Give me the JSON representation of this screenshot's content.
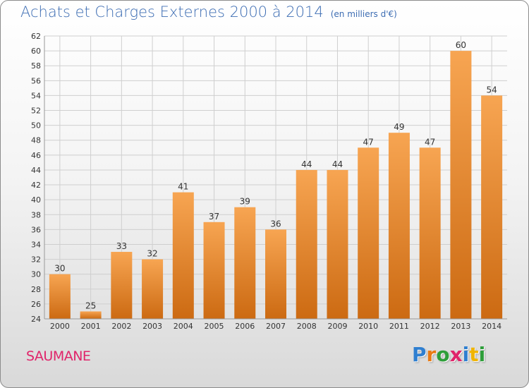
{
  "header": {
    "title": "Achats et Charges Externes 2000 à 2014",
    "subtitle": "(en milliers d'€)"
  },
  "footer": {
    "commune": "SAUMANE",
    "brand": "Proxiti",
    "brand_letters": [
      {
        "ch": "P",
        "color": "#2f7fd0"
      },
      {
        "ch": "r",
        "color": "#e87a14"
      },
      {
        "ch": "o",
        "color": "#2e9e3a"
      },
      {
        "ch": "x",
        "color": "#e0246a"
      },
      {
        "ch": "i",
        "color": "#2f7fd0"
      },
      {
        "ch": "t",
        "color": "#f0b400"
      },
      {
        "ch": "i",
        "color": "#2e9e3a"
      }
    ]
  },
  "colors": {
    "bar_light": "#f7a552",
    "bar_dark": "#cc6a12",
    "title": "#3d6db3",
    "commune": "#e0246a",
    "grid": "#cfcfcf",
    "axis_text": "#333333"
  },
  "chart_data": {
    "type": "bar",
    "title": "Achats et Charges Externes 2000 à 2014",
    "subtitle": "(en milliers d'€)",
    "categories": [
      "2000",
      "2001",
      "2002",
      "2003",
      "2004",
      "2005",
      "2006",
      "2007",
      "2008",
      "2009",
      "2010",
      "2011",
      "2012",
      "2013",
      "2014"
    ],
    "values": [
      30,
      25,
      33,
      32,
      41,
      37,
      39,
      36,
      44,
      44,
      47,
      49,
      47,
      60,
      54
    ],
    "data_labels": [
      "30",
      "25",
      "33",
      "32",
      "41",
      "37",
      "39",
      "36",
      "44",
      "44",
      "47",
      "49",
      "47",
      "60",
      "54"
    ],
    "ylim": [
      24,
      62
    ],
    "yticks": [
      "24",
      "26",
      "28",
      "30",
      "32",
      "34",
      "36",
      "38",
      "40",
      "42",
      "44",
      "46",
      "48",
      "50",
      "52",
      "54",
      "56",
      "58",
      "60",
      "62"
    ],
    "grid": true,
    "xlabel": "",
    "ylabel": ""
  }
}
